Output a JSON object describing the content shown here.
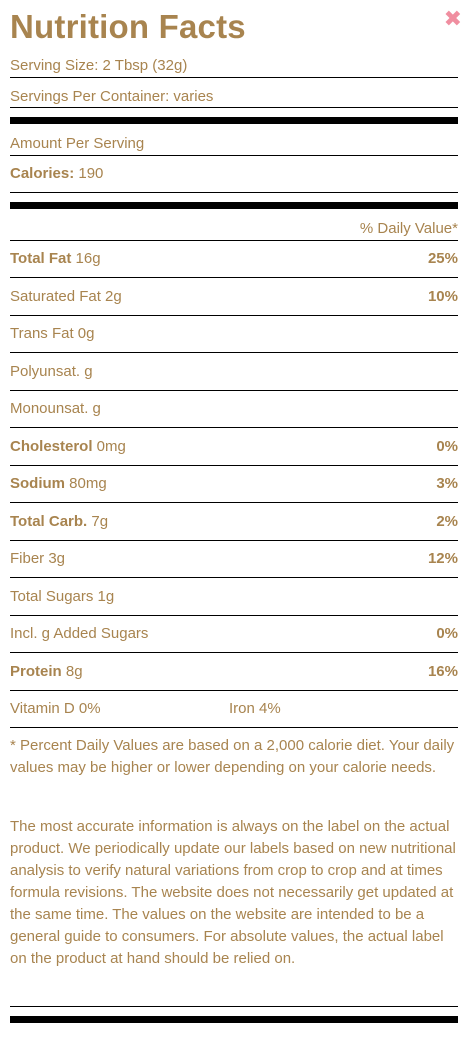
{
  "header": {
    "title": "Nutrition Facts",
    "close_glyph": "✖"
  },
  "serving": {
    "size": "Serving Size: 2 Tbsp (32g)",
    "per_container": "Servings Per Container: varies"
  },
  "amount_per_serving": "Amount Per Serving",
  "calories": {
    "label": "Calories:",
    "value": " 190"
  },
  "daily_value_header": "% Daily Value*",
  "nutrients": [
    {
      "label": "Total Fat",
      "amount": " 16g",
      "dv": "25%"
    },
    {
      "label": "Saturated Fat 2g",
      "amount": "",
      "dv": "10%"
    },
    {
      "label": "Trans Fat 0g",
      "amount": "",
      "dv": ""
    },
    {
      "label": "Polyunsat. g",
      "amount": "",
      "dv": ""
    },
    {
      "label": "Monounsat. g",
      "amount": "",
      "dv": ""
    },
    {
      "label": "Cholesterol",
      "amount": " 0mg",
      "dv": "0%"
    },
    {
      "label": "Sodium",
      "amount": " 80mg",
      "dv": "3%"
    },
    {
      "label": "Total Carb.",
      "amount": " 7g",
      "dv": "2%"
    },
    {
      "label": "Fiber 3g",
      "amount": "",
      "dv": "12%"
    },
    {
      "label": "Total Sugars 1g",
      "amount": "",
      "dv": ""
    },
    {
      "label": "Incl. g Added Sugars",
      "amount": "",
      "dv": "0%"
    },
    {
      "label": "Protein",
      "amount": " 8g",
      "dv": "16%"
    }
  ],
  "vitamins": {
    "vitamin_d": "Vitamin D 0%",
    "iron": "Iron 4%"
  },
  "footnote": "* Percent Daily Values are based on a 2,000 calorie diet. Your daily values may be higher or lower depending on your calorie needs.",
  "disclaimer": "The most accurate information is always on the label on the actual product. We periodically update our labels based on new nutritional analysis to verify natural variations from crop to crop and at times formula revisions. The website does not necessarily get updated at the same time. The values on the website are intended to be a general guide to consumers. For absolute values, the actual label on the product at hand should be relied on.",
  "colors": {
    "text": "#a8844f",
    "close": "#f08ea0",
    "rule": "#000000"
  }
}
